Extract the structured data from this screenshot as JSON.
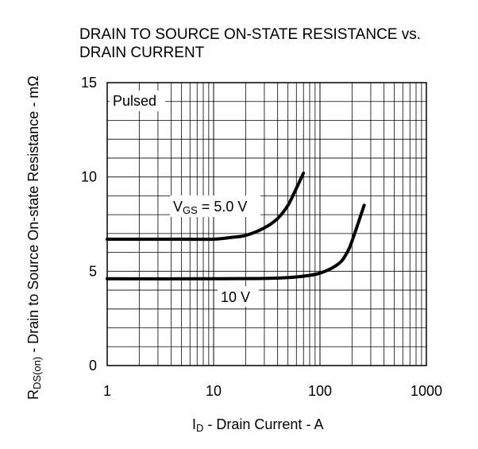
{
  "title_lines": [
    "DRAIN TO SOURCE ON-STATE RESISTANCE vs.",
    "DRAIN CURRENT"
  ],
  "chart_data": {
    "type": "line",
    "title": "DRAIN TO SOURCE ON-STATE RESISTANCE vs. DRAIN CURRENT",
    "x_scale": "log",
    "xlim": [
      1,
      1000
    ],
    "ylim": [
      0,
      15
    ],
    "grid": true,
    "xticks": [
      1,
      10,
      100,
      1000
    ],
    "xtick_labels": [
      "1",
      "10",
      "100",
      "1000"
    ],
    "yticks": [
      0,
      5,
      10,
      15
    ],
    "ytick_labels": [
      "0",
      "5",
      "10",
      "15"
    ],
    "xlabel": {
      "main": "I",
      "sub": "D",
      "rest": " - Drain Current - A"
    },
    "ylabel": {
      "main": "R",
      "sub": "DS(on)",
      "rest": " - Drain to Source On-state Resistance - mΩ"
    },
    "annotations": [
      "Pulsed"
    ],
    "series": [
      {
        "label": {
          "main": "V",
          "sub": "GS",
          "rest": " = 5.0 V"
        },
        "x": [
          1,
          5,
          10,
          15,
          20,
          30,
          40,
          50,
          60,
          70
        ],
        "y": [
          6.7,
          6.7,
          6.7,
          6.8,
          6.9,
          7.3,
          7.8,
          8.5,
          9.4,
          10.2
        ]
      },
      {
        "label": {
          "main": "10 V",
          "sub": "",
          "rest": ""
        },
        "x": [
          1,
          10,
          30,
          60,
          100,
          150,
          180,
          200,
          230,
          260
        ],
        "y": [
          4.6,
          4.6,
          4.62,
          4.7,
          4.9,
          5.4,
          6.0,
          6.6,
          7.6,
          8.5
        ]
      }
    ]
  }
}
